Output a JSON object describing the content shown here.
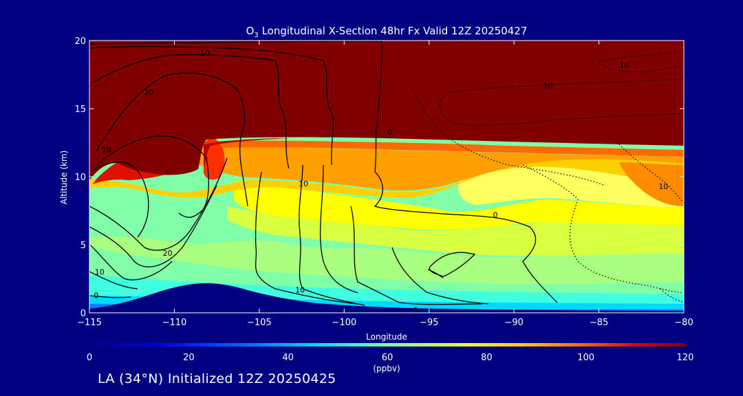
{
  "chart_data": {
    "type": "heatmap",
    "title": "O",
    "title_sub": "3",
    "title_rest": " Longitudinal X-Section 48hr  Fx Valid 12Z 20250427",
    "xlabel": "Longitude",
    "ylabel": "Altitude (km)",
    "xlim": [
      -115,
      -80
    ],
    "ylim": [
      0,
      20
    ],
    "x_ticks": [
      -115,
      -110,
      -105,
      -100,
      -95,
      -90,
      -85,
      -80
    ],
    "x_tick_labels": [
      "−115",
      "−110",
      "−105",
      "−100",
      "−95",
      "−90",
      "−85",
      "−80"
    ],
    "y_ticks": [
      0,
      5,
      10,
      15,
      20
    ],
    "y_tick_labels": [
      "0",
      "5",
      "10",
      "15",
      "20"
    ],
    "colorbar": {
      "min": 0,
      "max": 120,
      "ticks": [
        0,
        20,
        40,
        60,
        80,
        100,
        120
      ],
      "tick_labels": [
        "0",
        "20",
        "40",
        "60",
        "80",
        "100",
        "120"
      ],
      "units": "(ppbv)"
    },
    "ozone_layers": [
      {
        "range_ppbv": "120+",
        "altitude_km_west": 9.8,
        "altitude_km_east": 12.2
      },
      {
        "range_ppbv": "80-100",
        "altitude_km_west": 9.0,
        "altitude_km_east": 11.0
      },
      {
        "range_ppbv": "65-80",
        "altitude_km_west": 6.0,
        "altitude_km_east": 4.0
      },
      {
        "range_ppbv": "45-60",
        "altitude_km_west": 2.0,
        "altitude_km_east": 1.0
      },
      {
        "range_ppbv": "25-40",
        "altitude_km_west": 0.3,
        "altitude_km_east": 0.2
      }
    ],
    "terrain": [
      [
        -115,
        0.3
      ],
      [
        -112,
        0.8
      ],
      [
        -110,
        1.6
      ],
      [
        -108.5,
        2.2
      ],
      [
        -107,
        2.0
      ],
      [
        -104,
        1.3
      ],
      [
        -100,
        0.6
      ],
      [
        -95,
        0.4
      ],
      [
        -90,
        0.3
      ],
      [
        -85,
        0.2
      ],
      [
        -80,
        0.2
      ]
    ],
    "contour_labels": [
      {
        "text": "10",
        "lon": -108.2,
        "alt": 19.1
      },
      {
        "text": "20",
        "lon": -111.5,
        "alt": 16.2
      },
      {
        "text": "10",
        "lon": -114.0,
        "alt": 12.0
      },
      {
        "text": "10",
        "lon": -102.4,
        "alt": 9.5
      },
      {
        "text": "0",
        "lon": -97.3,
        "alt": 13.3
      },
      {
        "text": "10",
        "lon": -88.0,
        "alt": 16.7
      },
      {
        "text": "10",
        "lon": -83.5,
        "alt": 18.2
      },
      {
        "text": "10",
        "lon": -81.2,
        "alt": 9.3
      },
      {
        "text": "0",
        "lon": -91.1,
        "alt": 7.2
      },
      {
        "text": "20",
        "lon": -110.4,
        "alt": 4.4
      },
      {
        "text": "10",
        "lon": -114.4,
        "alt": 3.0
      },
      {
        "text": "0",
        "lon": -114.6,
        "alt": 1.3
      },
      {
        "text": "10",
        "lon": -102.6,
        "alt": 1.7
      },
      {
        "text": "0",
        "lon": -95.8,
        "alt": 0.2
      }
    ]
  },
  "footer": {
    "caption": "LA (34°N) Initialized 12Z 20250425"
  }
}
